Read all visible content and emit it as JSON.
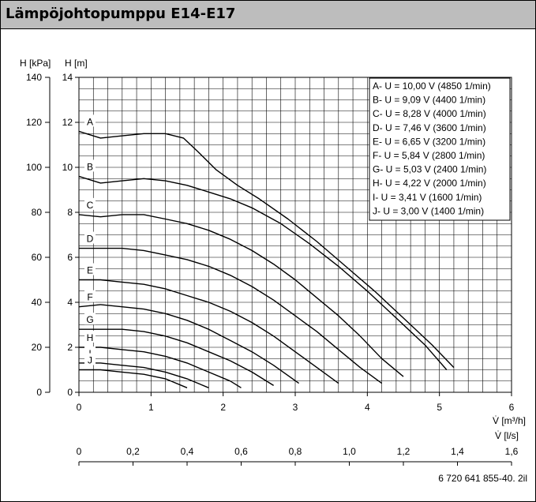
{
  "title": "Lämpöjohtopumppu E14-E17",
  "footnote": "6 720 641 855-40. 2il",
  "colors": {
    "title_bg": "#bdbdbd",
    "line": "#000000"
  },
  "chart_data": {
    "type": "line",
    "axes": {
      "y_kpa": {
        "label": "H [kPa]",
        "ticks": [
          0,
          20,
          40,
          60,
          80,
          100,
          120,
          140
        ],
        "range": [
          0,
          140
        ]
      },
      "y_m": {
        "label": "H [m]",
        "ticks": [
          0,
          2,
          4,
          6,
          8,
          10,
          12,
          14
        ],
        "range": [
          0,
          14
        ]
      },
      "x_m3h": {
        "label": "V̇ [m³/h]",
        "ticks": [
          0,
          1,
          2,
          3,
          4,
          5,
          6
        ],
        "range": [
          0,
          6
        ]
      },
      "x_ls": {
        "label": "V̇ [l/s]",
        "ticks": [
          "0",
          "0,2",
          "0,4",
          "0,6",
          "0,8",
          "1,0",
          "1,2",
          "1,4",
          "1,6"
        ],
        "range": [
          0,
          1.6
        ]
      }
    },
    "grid": true,
    "legend_position": "top-right",
    "legend": [
      "A-  U = 10,00 V (4850 1/min)",
      "B-  U = 9,09 V (4400 1/min)",
      "C-  U = 8,28 V (4000 1/min)",
      "D-  U = 7,46 V (3600 1/min)",
      "E-  U = 6,65 V (3200 1/min)",
      "F-  U = 5,84 V (2800 1/min)",
      "G-  U = 5,03 V (2400 1/min)",
      "H-  U = 4,22 V (2000 1/min)",
      "I-  U = 3,41 V (1600 1/min)",
      "J-  U = 3,00 V (1400 1/min)"
    ],
    "series": [
      {
        "name": "A",
        "x": [
          0,
          0.3,
          0.6,
          0.9,
          1.2,
          1.45,
          1.65,
          1.9,
          2.2,
          2.5,
          2.9,
          3.3,
          3.7,
          4.1,
          4.5,
          4.9,
          5.2
        ],
        "y": [
          11.6,
          11.3,
          11.4,
          11.5,
          11.5,
          11.3,
          10.7,
          9.9,
          9.2,
          8.6,
          7.7,
          6.7,
          5.6,
          4.5,
          3.3,
          2.1,
          1.1
        ]
      },
      {
        "name": "B",
        "x": [
          0,
          0.3,
          0.6,
          0.9,
          1.2,
          1.5,
          1.8,
          2.1,
          2.4,
          2.8,
          3.2,
          3.6,
          4.0,
          4.4,
          4.8,
          5.1
        ],
        "y": [
          9.6,
          9.3,
          9.4,
          9.5,
          9.4,
          9.2,
          8.9,
          8.6,
          8.2,
          7.5,
          6.6,
          5.6,
          4.5,
          3.3,
          2.1,
          1.0
        ]
      },
      {
        "name": "C",
        "x": [
          0,
          0.3,
          0.6,
          0.9,
          1.2,
          1.5,
          1.8,
          2.1,
          2.4,
          2.7,
          3.0,
          3.3,
          3.6,
          3.9,
          4.2,
          4.5
        ],
        "y": [
          7.9,
          7.8,
          7.9,
          7.9,
          7.7,
          7.5,
          7.2,
          6.8,
          6.3,
          5.7,
          5.0,
          4.2,
          3.4,
          2.5,
          1.5,
          0.7
        ]
      },
      {
        "name": "D",
        "x": [
          0,
          0.3,
          0.6,
          0.9,
          1.2,
          1.5,
          1.8,
          2.1,
          2.4,
          2.7,
          3.0,
          3.3,
          3.6,
          3.9,
          4.2
        ],
        "y": [
          6.4,
          6.4,
          6.4,
          6.3,
          6.1,
          5.9,
          5.6,
          5.2,
          4.7,
          4.1,
          3.4,
          2.7,
          1.9,
          1.1,
          0.4
        ]
      },
      {
        "name": "E",
        "x": [
          0,
          0.3,
          0.6,
          0.9,
          1.2,
          1.5,
          1.8,
          2.1,
          2.4,
          2.7,
          3.0,
          3.3,
          3.6
        ],
        "y": [
          5.0,
          5.0,
          4.9,
          4.8,
          4.6,
          4.3,
          4.0,
          3.6,
          3.1,
          2.5,
          1.8,
          1.1,
          0.4
        ]
      },
      {
        "name": "F",
        "x": [
          0,
          0.3,
          0.6,
          0.9,
          1.2,
          1.5,
          1.8,
          2.1,
          2.4,
          2.7,
          3.05
        ],
        "y": [
          3.8,
          3.9,
          3.8,
          3.7,
          3.5,
          3.2,
          2.8,
          2.3,
          1.8,
          1.2,
          0.4
        ]
      },
      {
        "name": "G",
        "x": [
          0,
          0.3,
          0.6,
          0.9,
          1.2,
          1.5,
          1.8,
          2.1,
          2.4,
          2.7
        ],
        "y": [
          2.8,
          2.8,
          2.8,
          2.7,
          2.5,
          2.2,
          1.8,
          1.4,
          0.9,
          0.3
        ]
      },
      {
        "name": "H",
        "x": [
          0,
          0.3,
          0.6,
          0.9,
          1.2,
          1.5,
          1.8,
          2.1,
          2.25
        ],
        "y": [
          2.0,
          2.0,
          1.9,
          1.8,
          1.6,
          1.3,
          0.9,
          0.5,
          0.2
        ]
      },
      {
        "name": "I",
        "x": [
          0,
          0.3,
          0.6,
          0.9,
          1.2,
          1.5,
          1.8
        ],
        "y": [
          1.3,
          1.3,
          1.2,
          1.1,
          0.9,
          0.6,
          0.2
        ]
      },
      {
        "name": "J",
        "x": [
          0,
          0.3,
          0.6,
          0.9,
          1.2,
          1.5
        ],
        "y": [
          1.0,
          1.0,
          0.9,
          0.8,
          0.6,
          0.2
        ]
      }
    ],
    "curve_labels": [
      "A",
      "B",
      "C",
      "D",
      "E",
      "F",
      "G",
      "H",
      "I",
      "J"
    ]
  }
}
